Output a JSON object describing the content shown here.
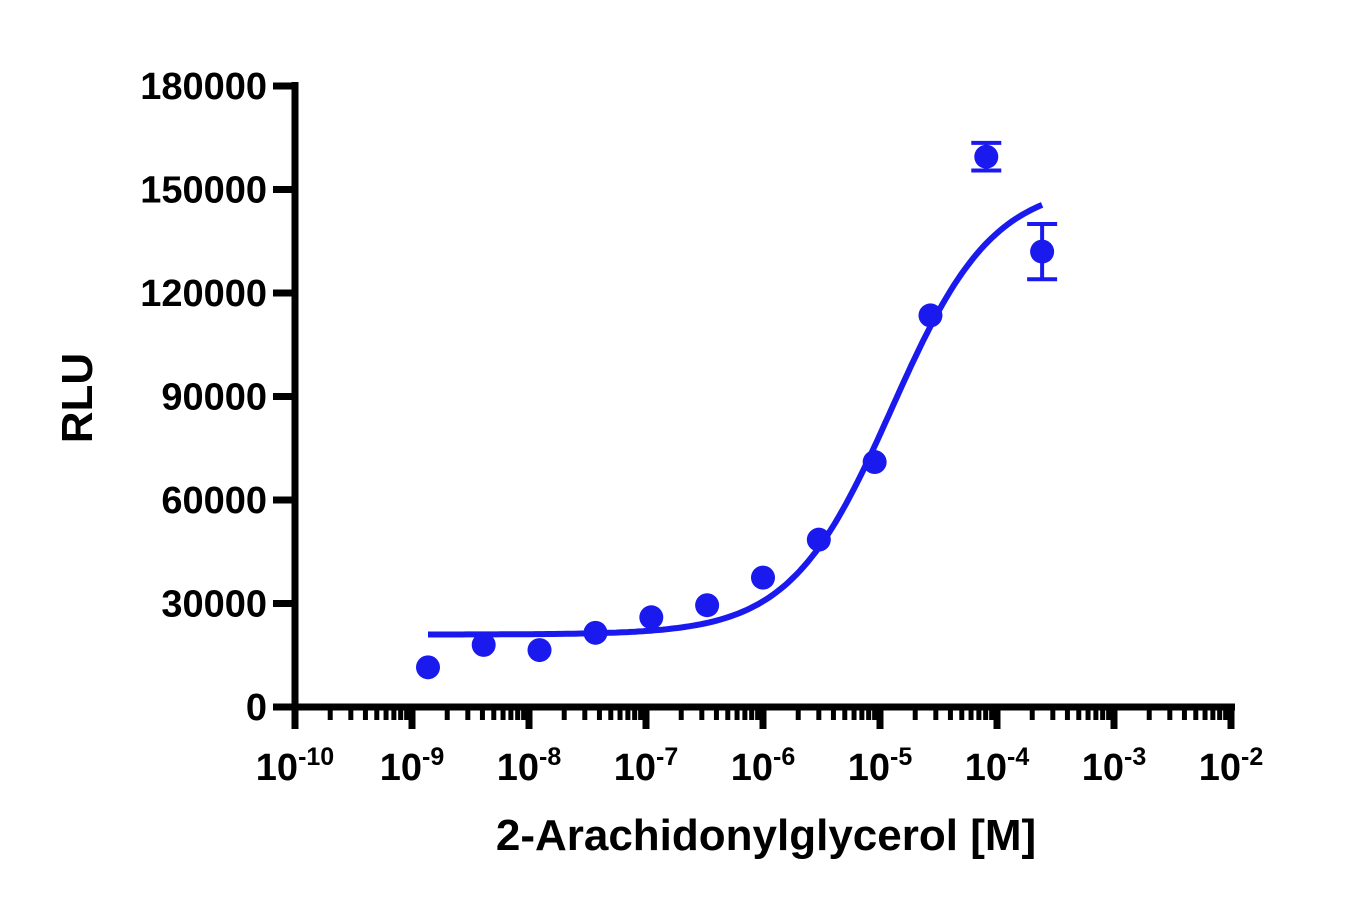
{
  "chart_data": {
    "type": "scatter",
    "xlabel": "2-Arachidonylglycerol [M]",
    "ylabel": "RLU",
    "x_scale": "log10",
    "xlim": [
      1e-10,
      0.01
    ],
    "ylim": [
      0,
      180000
    ],
    "y_ticks": [
      "0",
      "30000",
      "60000",
      "90000",
      "120000",
      "150000",
      "180000"
    ],
    "x_ticks": [
      {
        "base": "10",
        "exp": "-10"
      },
      {
        "base": "10",
        "exp": "-9"
      },
      {
        "base": "10",
        "exp": "-8"
      },
      {
        "base": "10",
        "exp": "-7"
      },
      {
        "base": "10",
        "exp": "-6"
      },
      {
        "base": "10",
        "exp": "-5"
      },
      {
        "base": "10",
        "exp": "-4"
      },
      {
        "base": "10",
        "exp": "-3"
      },
      {
        "base": "10",
        "exp": "-2"
      }
    ],
    "series": [
      {
        "color": "#1a1aee",
        "points": [
          {
            "x": 1.37e-09,
            "y": 11500,
            "err": 0
          },
          {
            "x": 4.1e-09,
            "y": 18000,
            "err": 0
          },
          {
            "x": 1.23e-08,
            "y": 16500,
            "err": 0
          },
          {
            "x": 3.7e-08,
            "y": 21500,
            "err": 0
          },
          {
            "x": 1.11e-07,
            "y": 26000,
            "err": 0
          },
          {
            "x": 3.33e-07,
            "y": 29500,
            "err": 0
          },
          {
            "x": 1e-06,
            "y": 37500,
            "err": 0
          },
          {
            "x": 3e-06,
            "y": 48500,
            "err": 0
          },
          {
            "x": 9e-06,
            "y": 71000,
            "err": 0
          },
          {
            "x": 2.7e-05,
            "y": 113500,
            "err": 0
          },
          {
            "x": 8.1e-05,
            "y": 159500,
            "err": 4000
          },
          {
            "x": 0.000243,
            "y": 132000,
            "err": 8000
          }
        ],
        "fit": {
          "model": "four-parameter logistic",
          "bottom": 21000,
          "top": 152000,
          "log_ec50": -4.9,
          "hill": 1.0,
          "x_range": [
            1.37e-09,
            0.000243
          ]
        }
      }
    ],
    "grid": false,
    "legend": "none"
  }
}
